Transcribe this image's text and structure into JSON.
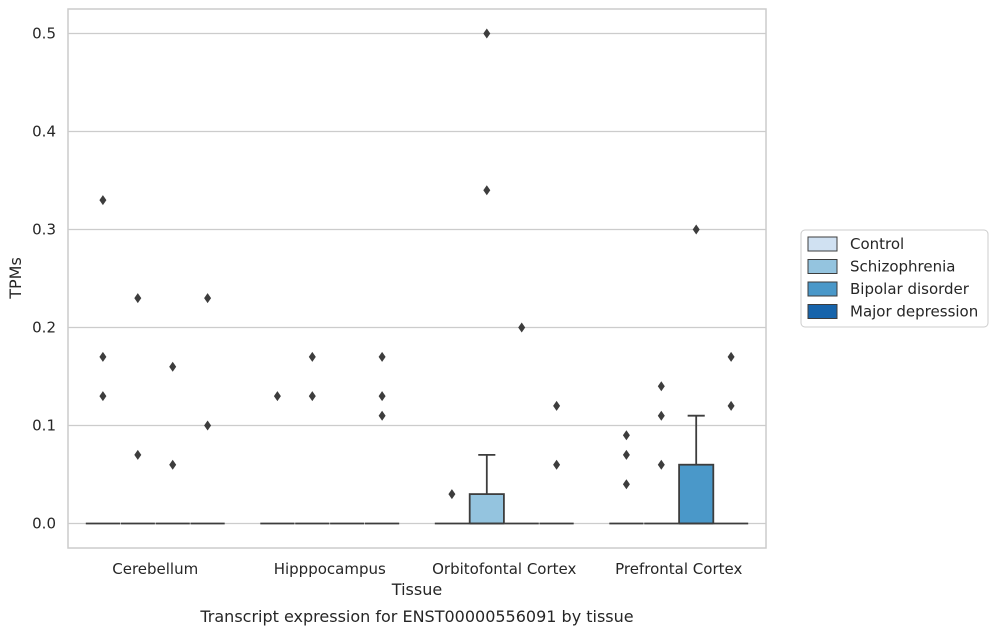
{
  "chart_data": {
    "type": "box",
    "xlabel": "Tissue",
    "ylabel": "TPMs",
    "caption": "Transcript expression for ENST00000556091 by tissue",
    "ylim": [
      -0.025,
      0.525
    ],
    "yticks": [
      0.0,
      0.1,
      0.2,
      0.3,
      0.4,
      0.5
    ],
    "ytick_labels": [
      "0.0",
      "0.1",
      "0.2",
      "0.3",
      "0.4",
      "0.5"
    ],
    "grid": true,
    "legend_placement": "right",
    "categories": [
      "Cerebellum",
      "Hipppocampus",
      "Orbitofontal Cortex",
      "Prefrontal Cortex"
    ],
    "series": [
      {
        "name": "Control",
        "color": "#d0e1f2",
        "boxes": [
          {
            "q1": 0,
            "median": 0,
            "q3": 0,
            "whisker_low": 0,
            "whisker_high": 0,
            "outliers": [
              0.17,
              0.13,
              0.33
            ]
          },
          {
            "q1": 0,
            "median": 0,
            "q3": 0,
            "whisker_low": 0,
            "whisker_high": 0,
            "outliers": [
              0.13
            ]
          },
          {
            "q1": 0,
            "median": 0,
            "q3": 0,
            "whisker_low": 0,
            "whisker_high": 0,
            "outliers": [
              0.03
            ]
          },
          {
            "q1": 0,
            "median": 0,
            "q3": 0,
            "whisker_low": 0,
            "whisker_high": 0,
            "outliers": [
              0.09,
              0.07,
              0.04
            ]
          }
        ]
      },
      {
        "name": "Schizophrenia",
        "color": "#94c4df",
        "boxes": [
          {
            "q1": 0,
            "median": 0,
            "q3": 0,
            "whisker_low": 0,
            "whisker_high": 0,
            "outliers": [
              0.23,
              0.07
            ]
          },
          {
            "q1": 0,
            "median": 0,
            "q3": 0,
            "whisker_low": 0,
            "whisker_high": 0,
            "outliers": [
              0.17,
              0.13
            ]
          },
          {
            "q1": 0,
            "median": 0,
            "q3": 0.03,
            "whisker_low": 0,
            "whisker_high": 0.07,
            "outliers": [
              0.5,
              0.34
            ]
          },
          {
            "q1": 0,
            "median": 0,
            "q3": 0,
            "whisker_low": 0,
            "whisker_high": 0,
            "outliers": [
              0.14,
              0.11,
              0.06
            ]
          }
        ]
      },
      {
        "name": "Bipolar disorder",
        "color": "#4a98c9",
        "boxes": [
          {
            "q1": 0,
            "median": 0,
            "q3": 0,
            "whisker_low": 0,
            "whisker_high": 0,
            "outliers": [
              0.16,
              0.06
            ]
          },
          {
            "q1": 0,
            "median": 0,
            "q3": 0,
            "whisker_low": 0,
            "whisker_high": 0,
            "outliers": []
          },
          {
            "q1": 0,
            "median": 0,
            "q3": 0,
            "whisker_low": 0,
            "whisker_high": 0,
            "outliers": [
              0.2
            ]
          },
          {
            "q1": 0,
            "median": 0,
            "q3": 0.06,
            "whisker_low": 0,
            "whisker_high": 0.11,
            "outliers": [
              0.3
            ]
          }
        ]
      },
      {
        "name": "Major depression",
        "color": "#1764ab",
        "boxes": [
          {
            "q1": 0,
            "median": 0,
            "q3": 0,
            "whisker_low": 0,
            "whisker_high": 0,
            "outliers": [
              0.23,
              0.1
            ]
          },
          {
            "q1": 0,
            "median": 0,
            "q3": 0,
            "whisker_low": 0,
            "whisker_high": 0,
            "outliers": [
              0.17,
              0.13,
              0.11
            ]
          },
          {
            "q1": 0,
            "median": 0,
            "q3": 0,
            "whisker_low": 0,
            "whisker_high": 0,
            "outliers": [
              0.12,
              0.06
            ]
          },
          {
            "q1": 0,
            "median": 0,
            "q3": 0,
            "whisker_low": 0,
            "whisker_high": 0,
            "outliers": [
              0.17,
              0.12
            ]
          }
        ]
      }
    ]
  }
}
